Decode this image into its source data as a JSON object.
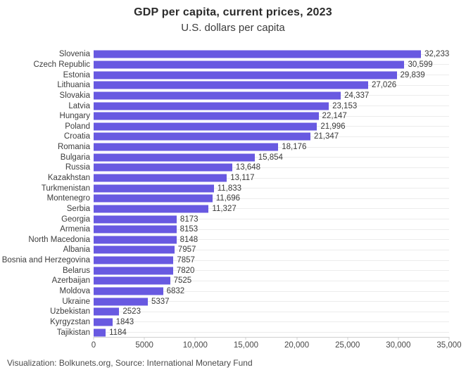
{
  "chart": {
    "title": "GDP per capita, current prices, 2023",
    "subtitle": "U.S. dollars per capita",
    "attribution": "Visualization: Bolkunets.org, Source: International Monetary Fund"
  },
  "colors": {
    "bar": "#6859e1",
    "gridline": "#ececec",
    "axis": "#cfcfcf",
    "category_text": "#3d3d3d",
    "value_text": "#3a3a3a",
    "title_text": "#2b2b2b"
  },
  "chart_data": {
    "type": "bar",
    "orientation": "horizontal",
    "title": "GDP per capita, current prices, 2023",
    "subtitle": "U.S. dollars per capita",
    "xlabel": "",
    "ylabel": "",
    "xlim": [
      0,
      35000
    ],
    "grid": "horizontal row lines only",
    "legend": "none",
    "bar_color": "#6859e1",
    "categories": [
      "Slovenia",
      "Czech Republic",
      "Estonia",
      "Lithuania",
      "Slovakia",
      "Latvia",
      "Hungary",
      "Poland",
      "Croatia",
      "Romania",
      "Bulgaria",
      "Russia",
      "Kazakhstan",
      "Turkmenistan",
      "Montenegro",
      "Serbia",
      "Georgia",
      "Armenia",
      "North Macedonia",
      "Albania",
      "Bosnia and Herzegovina",
      "Belarus",
      "Azerbaijan",
      "Moldova",
      "Ukraine",
      "Uzbekistan",
      "Kyrgyzstan",
      "Tajikistan"
    ],
    "values": [
      32233,
      30599,
      29839,
      27026,
      24337,
      23153,
      22147,
      21996,
      21347,
      18176,
      15854,
      13648,
      13117,
      11833,
      11696,
      11327,
      8173,
      8153,
      8148,
      7957,
      7857,
      7820,
      7525,
      6832,
      5337,
      2523,
      1843,
      1184
    ],
    "value_labels": [
      "32,233",
      "30,599",
      "29,839",
      "27,026",
      "24,337",
      "23,153",
      "22,147",
      "21,996",
      "21,347",
      "18,176",
      "15,854",
      "13,648",
      "13,117",
      "11,833",
      "11,696",
      "11,327",
      "8173",
      "8153",
      "8148",
      "7957",
      "7857",
      "7820",
      "7525",
      "6832",
      "5337",
      "2523",
      "1843",
      "1184"
    ],
    "xticks": [
      {
        "value": 0,
        "label": "0"
      },
      {
        "value": 5000,
        "label": "5000"
      },
      {
        "value": 10000,
        "label": "10,000"
      },
      {
        "value": 15000,
        "label": "15,000"
      },
      {
        "value": 20000,
        "label": "20,000"
      },
      {
        "value": 25000,
        "label": "25,000"
      },
      {
        "value": 30000,
        "label": "30,000"
      },
      {
        "value": 35000,
        "label": "35,000"
      }
    ]
  }
}
